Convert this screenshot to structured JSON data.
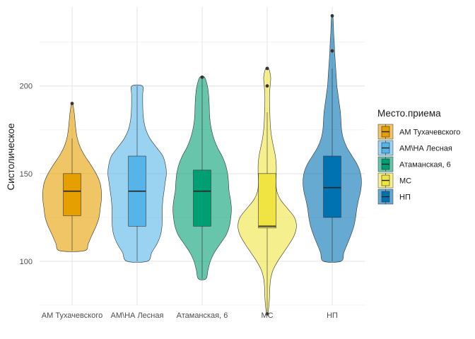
{
  "chart_data": {
    "type": "violin",
    "ylabel": "Систолическое",
    "xlabel": "",
    "ylim": [
      75,
      245
    ],
    "y_ticks": [
      100,
      150,
      200
    ],
    "grid": true,
    "legend_title": "Место.приема",
    "legend_position": "right",
    "categories": [
      "АМ Тухачевского",
      "АМ\\НА Лесная",
      "Атаманская, 6",
      "МС",
      "НП"
    ],
    "colors": [
      "#E69F00",
      "#56B4E9",
      "#009E73",
      "#F0E442",
      "#0072B2"
    ],
    "series": [
      {
        "name": "АМ Тухачевского",
        "box": {
          "lower_whisker": 106,
          "q1": 126,
          "median": 140,
          "q3": 150,
          "upper_whisker": 170
        },
        "outliers": [
          190
        ],
        "density": [
          [
            106,
            0.42
          ],
          [
            110,
            0.55
          ],
          [
            115,
            0.68
          ],
          [
            120,
            0.82
          ],
          [
            125,
            0.92
          ],
          [
            130,
            0.96
          ],
          [
            135,
            1.0
          ],
          [
            140,
            1.0
          ],
          [
            145,
            0.95
          ],
          [
            150,
            0.82
          ],
          [
            155,
            0.64
          ],
          [
            160,
            0.44
          ],
          [
            165,
            0.28
          ],
          [
            170,
            0.18
          ],
          [
            175,
            0.13
          ],
          [
            180,
            0.1
          ],
          [
            185,
            0.07
          ],
          [
            190,
            0.02
          ]
        ]
      },
      {
        "name": "АМ\\НА Лесная",
        "box": {
          "lower_whisker": 100,
          "q1": 120,
          "median": 140,
          "q3": 160,
          "upper_whisker": 200
        },
        "outliers": [],
        "density": [
          [
            100,
            0.35
          ],
          [
            105,
            0.5
          ],
          [
            110,
            0.68
          ],
          [
            115,
            0.8
          ],
          [
            120,
            0.85
          ],
          [
            125,
            0.86
          ],
          [
            130,
            0.86
          ],
          [
            135,
            0.88
          ],
          [
            140,
            0.92
          ],
          [
            145,
            0.96
          ],
          [
            150,
            1.0
          ],
          [
            155,
            0.97
          ],
          [
            160,
            0.88
          ],
          [
            165,
            0.66
          ],
          [
            170,
            0.44
          ],
          [
            175,
            0.3
          ],
          [
            180,
            0.23
          ],
          [
            185,
            0.2
          ],
          [
            190,
            0.19
          ],
          [
            195,
            0.19
          ],
          [
            200,
            0.18
          ]
        ]
      },
      {
        "name": "Атаманская, 6",
        "box": {
          "lower_whisker": 90,
          "q1": 120,
          "median": 140,
          "q3": 152,
          "upper_whisker": 205
        },
        "outliers": [
          205
        ],
        "density": [
          [
            90,
            0.13
          ],
          [
            95,
            0.2
          ],
          [
            100,
            0.28
          ],
          [
            105,
            0.42
          ],
          [
            110,
            0.62
          ],
          [
            115,
            0.82
          ],
          [
            120,
            0.93
          ],
          [
            125,
            0.98
          ],
          [
            130,
            1.0
          ],
          [
            135,
            0.97
          ],
          [
            140,
            0.92
          ],
          [
            145,
            0.9
          ],
          [
            150,
            0.87
          ],
          [
            155,
            0.8
          ],
          [
            160,
            0.68
          ],
          [
            165,
            0.52
          ],
          [
            170,
            0.4
          ],
          [
            175,
            0.32
          ],
          [
            180,
            0.27
          ],
          [
            185,
            0.25
          ],
          [
            190,
            0.24
          ],
          [
            195,
            0.22
          ],
          [
            200,
            0.18
          ],
          [
            205,
            0.08
          ]
        ]
      },
      {
        "name": "МС",
        "box": {
          "lower_whisker": 70,
          "q1": 119,
          "median": 120,
          "q3": 150,
          "upper_whisker": 185
        },
        "outliers": [
          200,
          210,
          70
        ],
        "density": [
          [
            70,
            0.02
          ],
          [
            75,
            0.06
          ],
          [
            80,
            0.08
          ],
          [
            85,
            0.09
          ],
          [
            90,
            0.12
          ],
          [
            95,
            0.2
          ],
          [
            100,
            0.36
          ],
          [
            105,
            0.56
          ],
          [
            110,
            0.76
          ],
          [
            115,
            0.93
          ],
          [
            120,
            1.0
          ],
          [
            125,
            0.93
          ],
          [
            130,
            0.7
          ],
          [
            135,
            0.46
          ],
          [
            140,
            0.33
          ],
          [
            145,
            0.3
          ],
          [
            150,
            0.31
          ],
          [
            155,
            0.31
          ],
          [
            160,
            0.28
          ],
          [
            165,
            0.22
          ],
          [
            170,
            0.16
          ],
          [
            175,
            0.12
          ],
          [
            180,
            0.1
          ],
          [
            185,
            0.09
          ],
          [
            190,
            0.08
          ],
          [
            195,
            0.08
          ],
          [
            200,
            0.1
          ],
          [
            205,
            0.12
          ],
          [
            210,
            0.05
          ]
        ]
      },
      {
        "name": "НП",
        "box": {
          "lower_whisker": 100,
          "q1": 125,
          "median": 142,
          "q3": 160,
          "upper_whisker": 210
        },
        "outliers": [
          220,
          240
        ],
        "density": [
          [
            100,
            0.3
          ],
          [
            105,
            0.4
          ],
          [
            110,
            0.52
          ],
          [
            115,
            0.64
          ],
          [
            120,
            0.74
          ],
          [
            125,
            0.8
          ],
          [
            130,
            0.84
          ],
          [
            135,
            0.9
          ],
          [
            140,
            0.97
          ],
          [
            145,
            1.0
          ],
          [
            150,
            0.97
          ],
          [
            155,
            0.86
          ],
          [
            160,
            0.68
          ],
          [
            165,
            0.5
          ],
          [
            170,
            0.38
          ],
          [
            175,
            0.32
          ],
          [
            180,
            0.3
          ],
          [
            185,
            0.28
          ],
          [
            190,
            0.24
          ],
          [
            195,
            0.2
          ],
          [
            200,
            0.16
          ],
          [
            205,
            0.14
          ],
          [
            210,
            0.12
          ],
          [
            215,
            0.1
          ],
          [
            220,
            0.08
          ],
          [
            225,
            0.07
          ],
          [
            230,
            0.05
          ],
          [
            235,
            0.04
          ],
          [
            240,
            0.02
          ]
        ]
      }
    ]
  }
}
